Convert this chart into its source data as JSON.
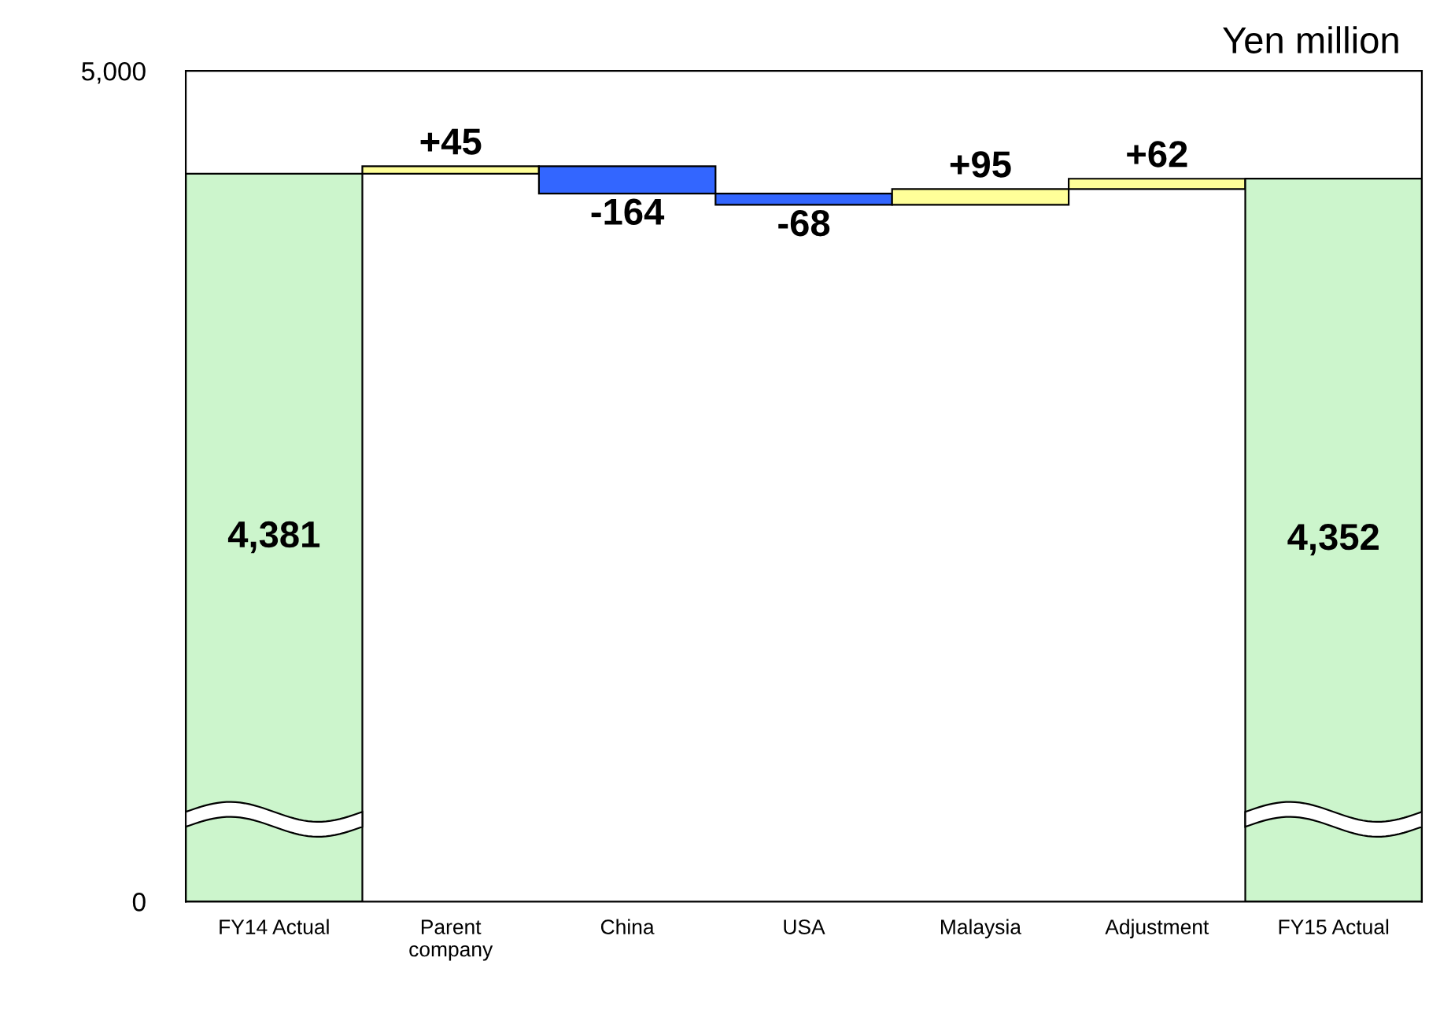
{
  "chart_data": {
    "type": "bar",
    "annotations": [
      "Yen million"
    ],
    "categories": [
      "FY14 Actual",
      "Parent\ncompany",
      "China",
      "USA",
      "Malaysia",
      "Adjustment",
      "FY15 Actual"
    ],
    "values": [
      4381,
      45,
      -164,
      -68,
      95,
      62,
      4352
    ],
    "base": [
      0,
      4381,
      4426,
      4262,
      4194,
      4289,
      0
    ],
    "colors": [
      "#ccf5cc",
      "#ffff99",
      "#3366ff",
      "#3366ff",
      "#ffff99",
      "#ffff99",
      "#ccf5cc"
    ],
    "value_labels": [
      "4,381",
      "+45",
      "-164",
      "-68",
      "+95",
      "+62",
      "4,352"
    ],
    "ylim": [
      0,
      5000
    ],
    "yticks": [
      0,
      {
        "value": 5000,
        "label": "5,000"
      }
    ],
    "grid": false,
    "legend": false
  }
}
